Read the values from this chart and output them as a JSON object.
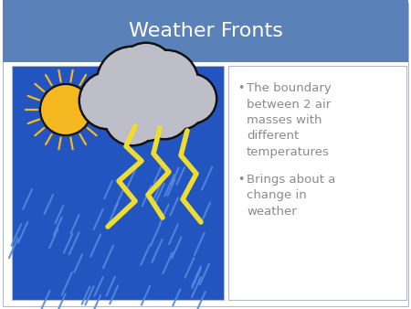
{
  "title": "Weather Fronts",
  "title_bg_color": "#5B82B8",
  "title_text_color": "#FFFFFF",
  "slide_bg_color": "#FFFFFF",
  "outer_border_color": "#B0B8C8",
  "bullet1": "The boundary\nbetween 2 air\nmasses with\ndifferent\ntemperatures",
  "bullet2": "Brings about a\nchange in\nweather",
  "bullet_text_color": "#8A8A8A",
  "image_bg_color": "#2255C0",
  "sun_color": "#F5B820",
  "sun_outline": "#111111",
  "cloud_color": "#BEBEC8",
  "cloud_outline": "#111111",
  "lightning_color": "#EEDD30",
  "rain_color": "#5588DD",
  "title_fontsize": 16,
  "bullet_fontsize": 9.5
}
